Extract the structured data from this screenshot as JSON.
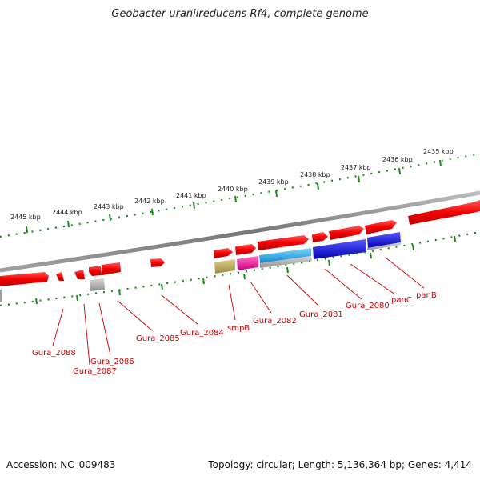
{
  "title": "Geobacter uraniireducens Rf4, complete genome",
  "footer": {
    "accession": "Accession: NC_009483",
    "summary": "Topology: circular; Length: 5,136,364 bp; Genes: 4,414"
  },
  "scale_labels": [
    "2445 kbp",
    "2444 kbp",
    "2443 kbp",
    "2442 kbp",
    "2441 kbp",
    "2440 kbp",
    "2439 kbp",
    "2438 kbp",
    "2437 kbp",
    "2436 kbp",
    "2435 kbp"
  ],
  "gene_labels": [
    "Gura_2088",
    "Gura_2087",
    "Gura_2086",
    "Gura_2085",
    "Gura_2084",
    "smpB",
    "Gura_2082",
    "Gura_2081",
    "Gura_2080",
    "panC",
    "panB"
  ],
  "colors": {
    "backbone": "#8c8c8c",
    "gene": "#ff0000",
    "gene_gray": "#a8a8a8",
    "gene_olive": "#c2b26a",
    "gene_magenta": "#ff1aa8",
    "gene_cyan": "#22aaee",
    "gene_blue": "#1010e6",
    "tick": "#1a8a1a",
    "label": "#cc0000"
  }
}
